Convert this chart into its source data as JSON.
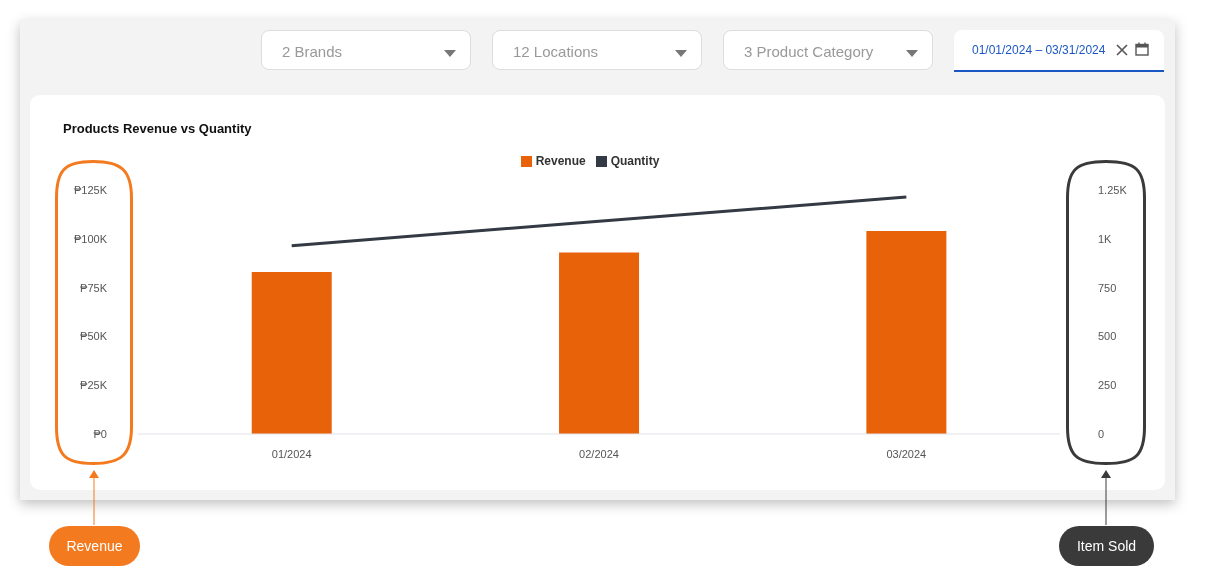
{
  "chart_data": {
    "type": "bar",
    "title": "Products Revenue vs Quantity",
    "categories": [
      "01/2024",
      "02/2024",
      "03/2024"
    ],
    "series": [
      {
        "name": "Revenue",
        "color": "#e8620a",
        "values": [
          83000,
          93000,
          104000
        ]
      },
      {
        "name": "Quantity",
        "type": "line",
        "axis": "y2",
        "color": "#333a44",
        "values": [
          965,
          1090,
          1214
        ]
      }
    ],
    "ylim": [
      0,
      125000
    ],
    "yticks": [
      {
        "value": 0,
        "label": "₱0"
      },
      {
        "value": 25000,
        "label": "₱25K"
      },
      {
        "value": 50000,
        "label": "₱50K"
      },
      {
        "value": 75000,
        "label": "₱75K"
      },
      {
        "value": 100000,
        "label": "₱100K"
      },
      {
        "value": 125000,
        "label": "₱125K"
      }
    ],
    "y2lim": [
      0,
      1250
    ],
    "y2ticks": [
      0,
      250,
      500,
      750,
      {
        "value": 1000,
        "label": "1K"
      },
      {
        "value": 1250,
        "label": "1.25K"
      }
    ],
    "legend": "top",
    "grid": false,
    "marker": "none",
    "line_style": "solid",
    "annotations": [
      "2 Brands",
      "12 Locations",
      "3 Product Category",
      "01/01/2024 – 03/31/2024",
      "Revenue",
      "Item Sold"
    ]
  }
}
